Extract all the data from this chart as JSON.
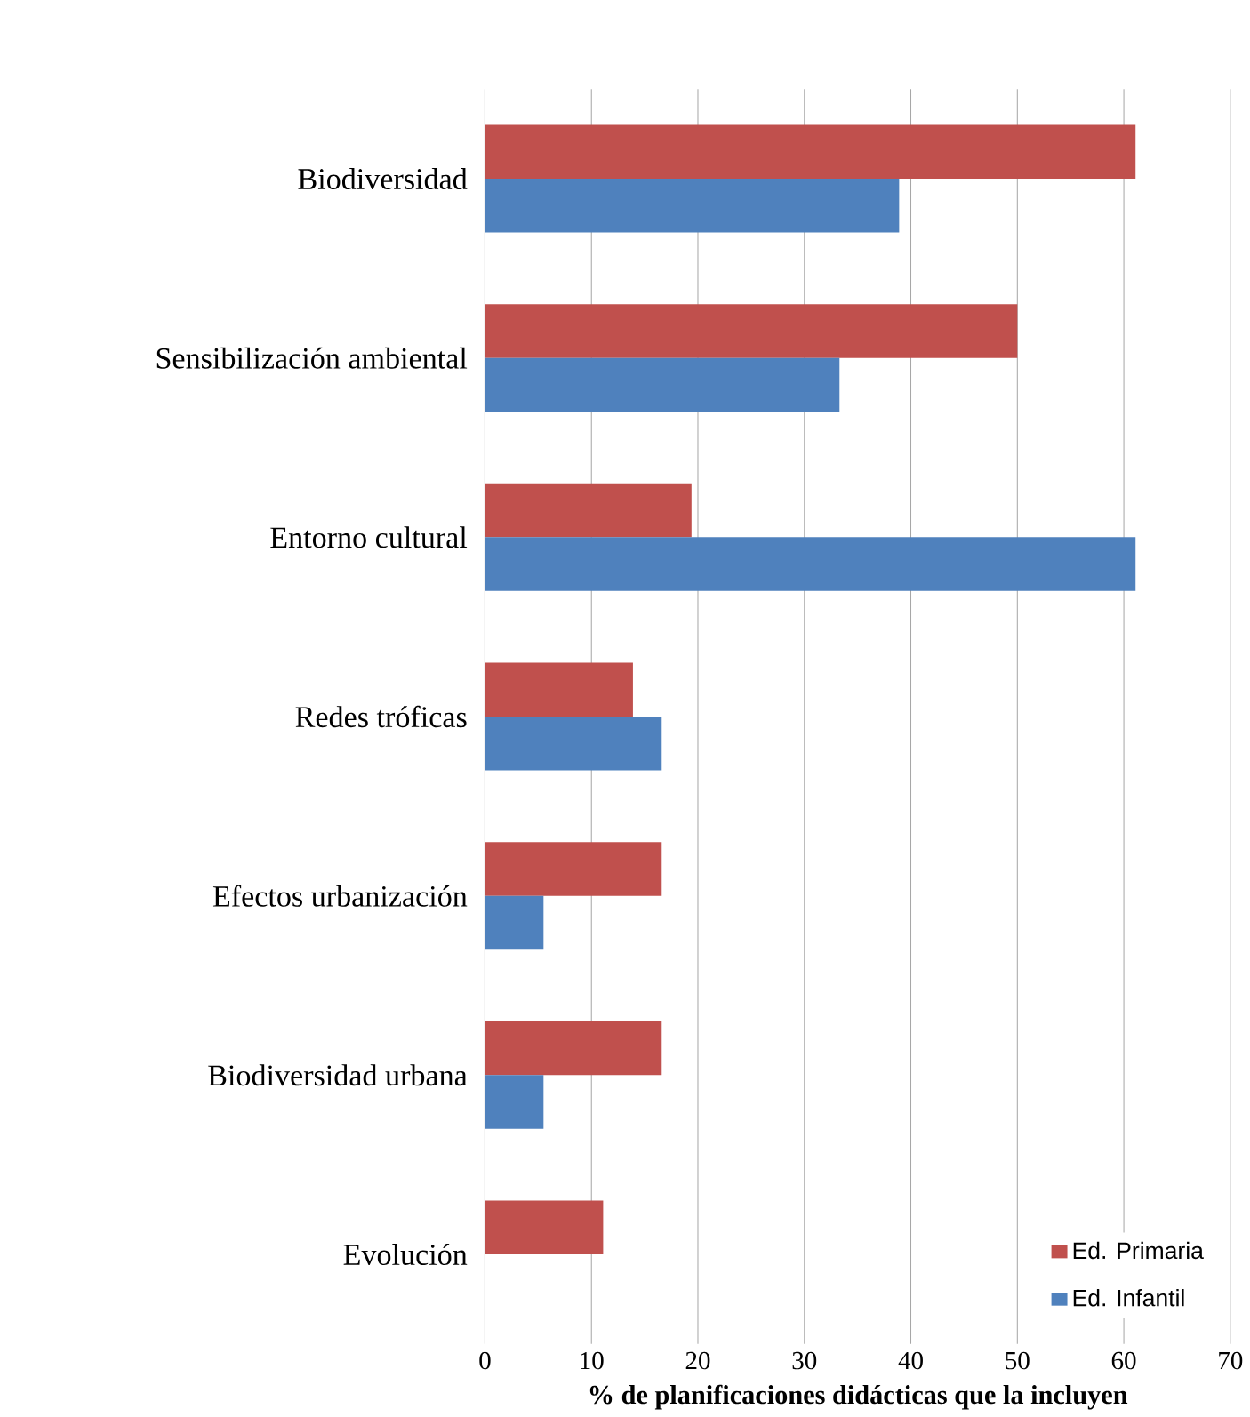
{
  "chart_data": {
    "type": "bar",
    "orientation": "horizontal",
    "xlabel": "% de planificaciones didácticas que la incluyen",
    "categories": [
      "Biodiversidad",
      "Sensibilización ambiental",
      "Entorno cultural",
      "Redes tróficas",
      "Efectos urbanización",
      "Biodiversidad urbana",
      "Evolución"
    ],
    "series": [
      {
        "name": "Ed. Primaria",
        "color": "#c0504d",
        "values": [
          61.1,
          50,
          19.4,
          13.9,
          16.6,
          16.6,
          11.1
        ]
      },
      {
        "name": "Ed. Infantil",
        "color": "#4f81bd",
        "values": [
          38.9,
          33.3,
          61.1,
          16.6,
          5.5,
          5.5,
          0
        ]
      }
    ],
    "xlim": [
      0,
      70
    ],
    "xticks": [
      0,
      10,
      20,
      30,
      40,
      50,
      60,
      70
    ],
    "grid": "x",
    "legend": "bottom right"
  }
}
